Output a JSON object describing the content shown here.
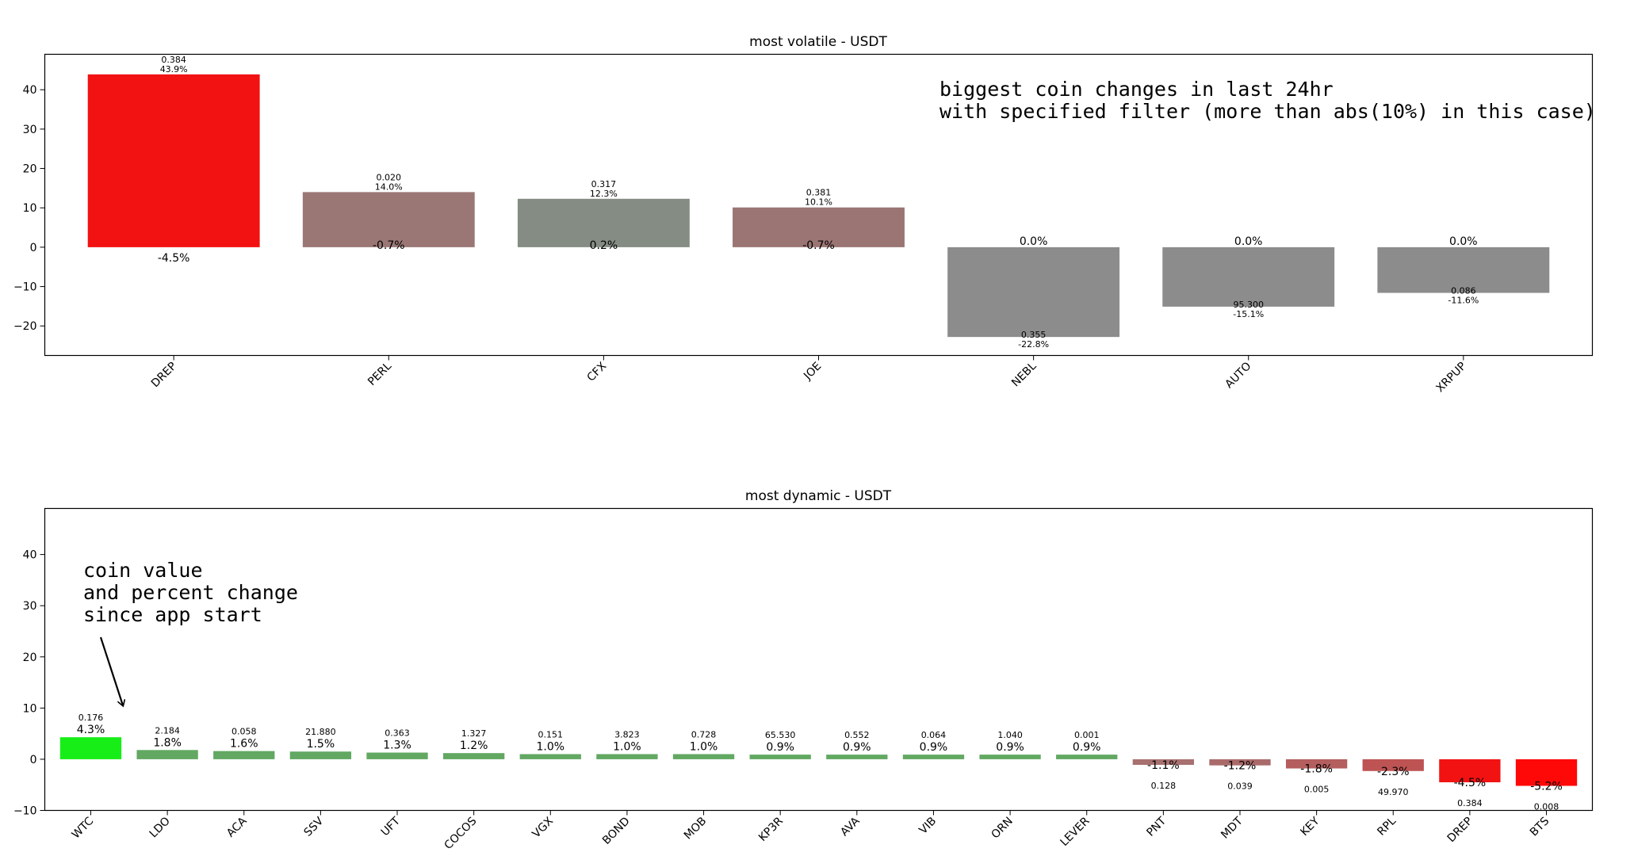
{
  "chart_data": [
    {
      "type": "bar",
      "title": "most volatile - USDT",
      "xlabel": "",
      "ylabel": "",
      "ylim": [
        -27.5,
        49
      ],
      "yticks": [
        -20,
        -10,
        0,
        10,
        20,
        30,
        40
      ],
      "ytick_labels": [
        "−20",
        "−10",
        "0",
        "10",
        "20",
        "30",
        "40"
      ],
      "grid": false,
      "categories": [
        "DREP",
        "PERL",
        "CFX",
        "JOE",
        "NEBL",
        "AUTO",
        "XRPUP"
      ],
      "values": [
        43.9,
        14.0,
        12.3,
        10.1,
        -22.8,
        -15.1,
        -11.6
      ],
      "coin_values": [
        "0.384",
        "0.020",
        "0.317",
        "0.381",
        "0.355",
        "95.300",
        "0.086"
      ],
      "value_labels": [
        "43.9%",
        "14.0%",
        "12.3%",
        "10.1%",
        "-22.8%",
        "-15.1%",
        "-11.6%"
      ],
      "since_start_labels": [
        "-4.5%",
        "-0.7%",
        "0.2%",
        "-0.7%",
        "0.0%",
        "0.0%",
        "0.0%"
      ],
      "colors": [
        "#f21212",
        "#9a7775",
        "#858c84",
        "#9b7573",
        "#8c8c8c",
        "#8c8c8c",
        "#8c8c8c"
      ],
      "annotation": [
        "biggest coin changes in last 24hr",
        "with specified filter (more than abs(10%) in this case)"
      ]
    },
    {
      "type": "bar",
      "title": "most dynamic - USDT",
      "xlabel": "",
      "ylabel": "",
      "ylim": [
        -10,
        49
      ],
      "yticks": [
        -10,
        0,
        10,
        20,
        30,
        40
      ],
      "ytick_labels": [
        "−10",
        "0",
        "10",
        "20",
        "30",
        "40"
      ],
      "grid": false,
      "categories": [
        "WTC",
        "LDO",
        "ACA",
        "SSV",
        "UFT",
        "COCOS",
        "VGX",
        "BOND",
        "MOB",
        "KP3R",
        "AVA",
        "VIB",
        "ORN",
        "LEVER",
        "PNT",
        "MDT",
        "KEY",
        "RPL",
        "DREP",
        "BTS"
      ],
      "values": [
        4.3,
        1.8,
        1.6,
        1.5,
        1.3,
        1.2,
        1.0,
        1.0,
        1.0,
        0.9,
        0.9,
        0.9,
        0.9,
        0.9,
        -1.1,
        -1.2,
        -1.8,
        -2.3,
        -4.5,
        -5.2
      ],
      "coin_values": [
        "0.176",
        "2.184",
        "0.058",
        "21.880",
        "0.363",
        "1.327",
        "0.151",
        "3.823",
        "0.728",
        "65.530",
        "0.552",
        "0.064",
        "1.040",
        "0.001",
        "0.128",
        "0.039",
        "0.005",
        "49.970",
        "0.384",
        "0.008"
      ],
      "value_labels": [
        "4.3%",
        "1.8%",
        "1.6%",
        "1.5%",
        "1.3%",
        "1.2%",
        "1.0%",
        "1.0%",
        "1.0%",
        "0.9%",
        "0.9%",
        "0.9%",
        "0.9%",
        "0.9%",
        "-1.1%",
        "-1.2%",
        "-1.8%",
        "-2.3%",
        "-4.5%",
        "-5.2%"
      ],
      "colors": [
        "#17ee17",
        "#62a862",
        "#62a862",
        "#62a862",
        "#62a862",
        "#62a862",
        "#62a862",
        "#62a862",
        "#62a862",
        "#62a862",
        "#62a862",
        "#62a862",
        "#62a862",
        "#62a862",
        "#a87070",
        "#aa6a6a",
        "#b45e5e",
        "#bd5353",
        "#f21212",
        "#ff0808"
      ],
      "annotation": [
        "coin value",
        "and percent change",
        "since app start"
      ]
    }
  ]
}
